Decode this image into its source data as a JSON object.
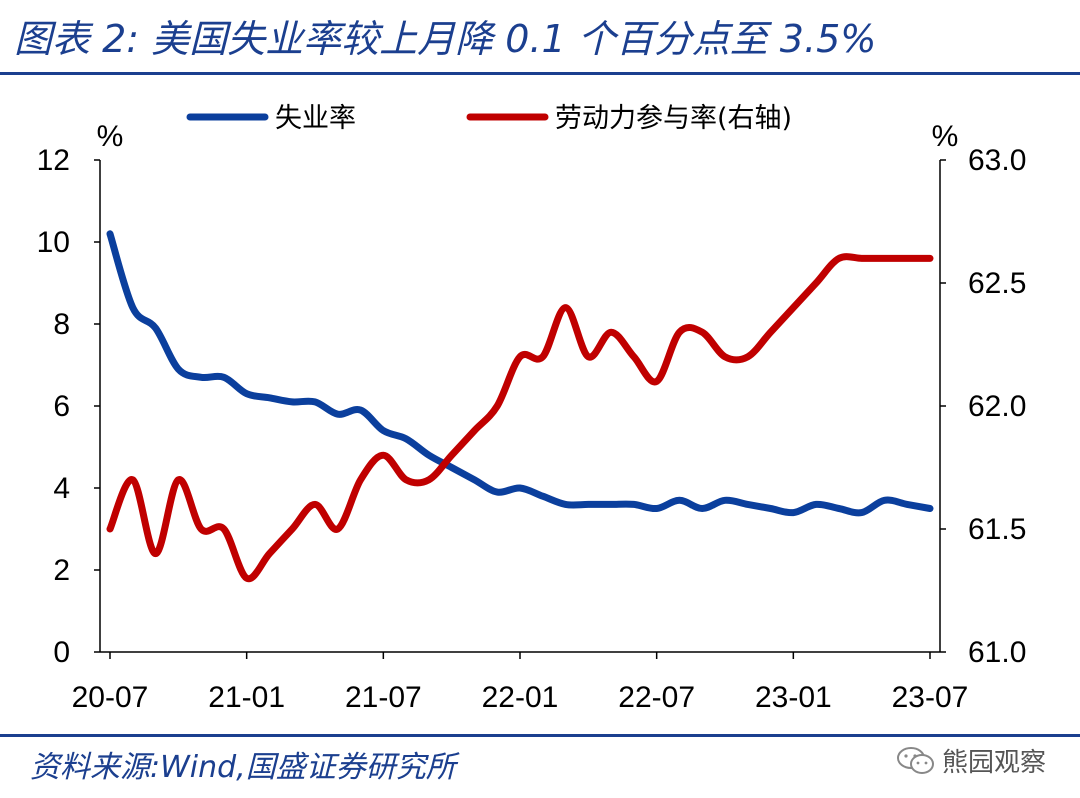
{
  "header": {
    "title": "图表 2:  美国失业率较上月降 0.1 个百分点至 3.5%"
  },
  "footer": {
    "source": "资料来源:Wind,国盛证券研究所",
    "watermark": "熊园观察",
    "watermark_icon": "wechat-icon"
  },
  "chart_data": {
    "type": "line",
    "title": "",
    "x": [
      "20-07",
      "20-08",
      "20-09",
      "20-10",
      "20-11",
      "20-12",
      "21-01",
      "21-02",
      "21-03",
      "21-04",
      "21-05",
      "21-06",
      "21-07",
      "21-08",
      "21-09",
      "21-10",
      "21-11",
      "21-12",
      "22-01",
      "22-02",
      "22-03",
      "22-04",
      "22-05",
      "22-06",
      "22-07",
      "22-08",
      "22-09",
      "22-10",
      "22-11",
      "22-12",
      "23-01",
      "23-02",
      "23-03",
      "23-04",
      "23-05",
      "23-06",
      "23-07"
    ],
    "x_tick_labels": [
      "20-07",
      "21-01",
      "21-07",
      "22-01",
      "22-07",
      "23-01",
      "23-07"
    ],
    "left_axis": {
      "unit": "%",
      "ylim": [
        0,
        12
      ],
      "ticks": [
        "0",
        "2",
        "4",
        "6",
        "8",
        "10",
        "12"
      ]
    },
    "right_axis": {
      "unit": "%",
      "ylim": [
        61.0,
        63.0
      ],
      "ticks": [
        "61.0",
        "61.5",
        "62.0",
        "62.5",
        "63.0"
      ]
    },
    "series": [
      {
        "name": "失业率",
        "axis": "left",
        "color": "#0b3f9d",
        "values": [
          10.2,
          8.4,
          7.9,
          6.9,
          6.7,
          6.7,
          6.3,
          6.2,
          6.1,
          6.1,
          5.8,
          5.9,
          5.4,
          5.2,
          4.8,
          4.5,
          4.2,
          3.9,
          4.0,
          3.8,
          3.6,
          3.6,
          3.6,
          3.6,
          3.5,
          3.7,
          3.5,
          3.7,
          3.6,
          3.5,
          3.4,
          3.6,
          3.5,
          3.4,
          3.7,
          3.6,
          3.5
        ]
      },
      {
        "name": "劳动力参与率(右轴)",
        "axis": "right",
        "color": "#c00000",
        "values": [
          61.5,
          61.7,
          61.4,
          61.7,
          61.5,
          61.5,
          61.3,
          61.4,
          61.5,
          61.6,
          61.5,
          61.7,
          61.8,
          61.7,
          61.7,
          61.8,
          61.9,
          62.0,
          62.2,
          62.2,
          62.4,
          62.2,
          62.3,
          62.2,
          62.1,
          62.3,
          62.3,
          62.2,
          62.2,
          62.3,
          62.4,
          62.5,
          62.6,
          62.6,
          62.6,
          62.6,
          62.6
        ]
      }
    ],
    "legend_position": "top",
    "grid": false
  }
}
